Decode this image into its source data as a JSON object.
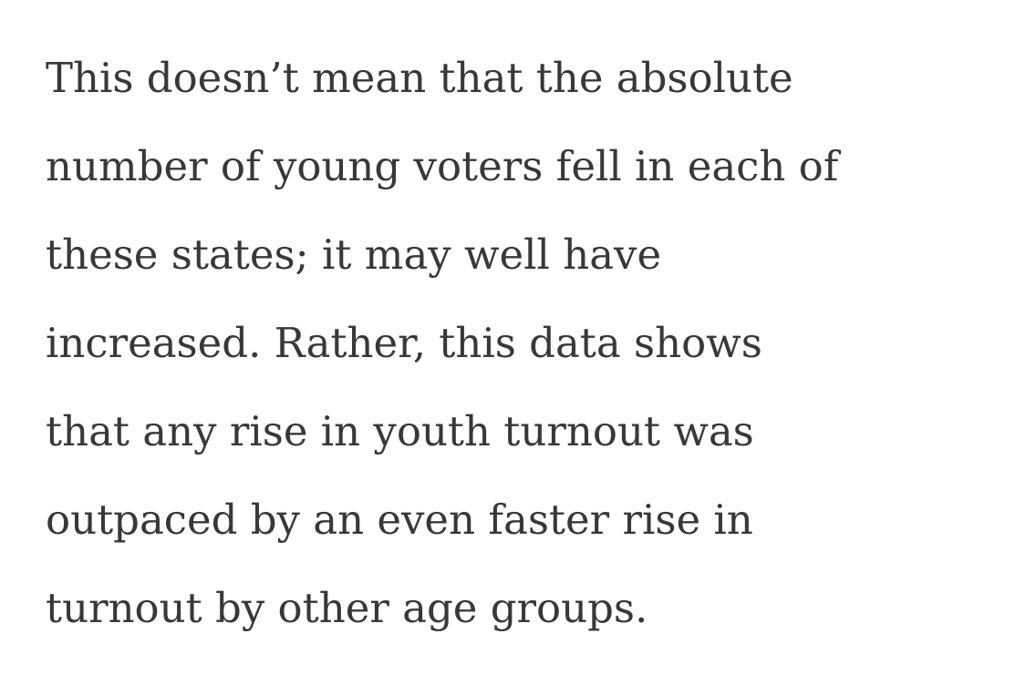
{
  "paragraph": {
    "lines": [
      "This doesn’t mean that the absolute",
      "number of young voters fell in each of",
      "these states; it may well have",
      "increased. Rather, this data shows",
      "that any rise in youth turnout was",
      "outpaced by an even faster rise in",
      "turnout by other age groups."
    ]
  }
}
